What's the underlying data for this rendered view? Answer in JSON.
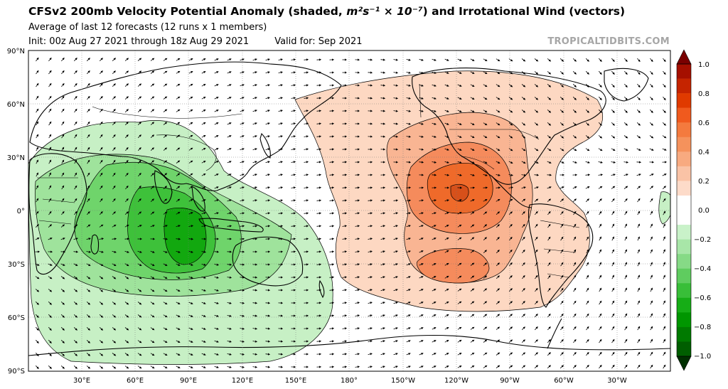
{
  "header": {
    "title_pre": "CFSv2 200mb Velocity Potential Anomaly (shaded, ",
    "title_units": "m²s⁻¹ × 10⁻⁷",
    "title_post": ") and Irrotational Wind (vectors)",
    "subtitle": "Average of last 12 forecasts (12 runs x 1 members)",
    "init": "Init: 00z Aug 27 2021 through 18z Aug 29 2021",
    "valid": "Valid for: Sep 2021",
    "brand": "TROPICALTIDBITS.COM"
  },
  "map": {
    "projection": "equirectangular, centered on 180°",
    "lat_labels": [
      "90°N",
      "60°N",
      "30°N",
      "0°",
      "30°S",
      "60°S",
      "90°S"
    ],
    "lon_labels": [
      "30°E",
      "60°E",
      "90°E",
      "120°E",
      "150°E",
      "180°",
      "150°W",
      "120°W",
      "90°W",
      "60°W",
      "30°W"
    ],
    "anomaly_regions": [
      {
        "name": "negative-center",
        "sign": "negative",
        "center_lon": 90,
        "center_lat": -10,
        "min_value": -0.5
      },
      {
        "name": "positive-center",
        "sign": "positive",
        "center_lon": -120,
        "center_lat": 10,
        "max_value": 0.5
      },
      {
        "name": "positive-secondary",
        "sign": "positive",
        "center_lon": -120,
        "center_lat": -30,
        "max_value": 0.4
      }
    ]
  },
  "colorbar": {
    "ticks": [
      "1.0",
      "0.8",
      "0.6",
      "0.4",
      "0.2",
      "0.0",
      "−0.2",
      "−0.4",
      "−0.6",
      "−0.8",
      "−1.0"
    ],
    "colors_top_to_bottom": [
      "#8c0000",
      "#a50f00",
      "#c52400",
      "#e03a00",
      "#f05a1e",
      "#f47a3e",
      "#f5925c",
      "#f8aa80",
      "#fac3a6",
      "#fddbc9",
      "#ffffff",
      "#ffffff",
      "#c9f2c9",
      "#a8e6a8",
      "#86da86",
      "#5fcc5f",
      "#38be38",
      "#16ad16",
      "#009600",
      "#007a00",
      "#005e00",
      "#003f00"
    ]
  }
}
